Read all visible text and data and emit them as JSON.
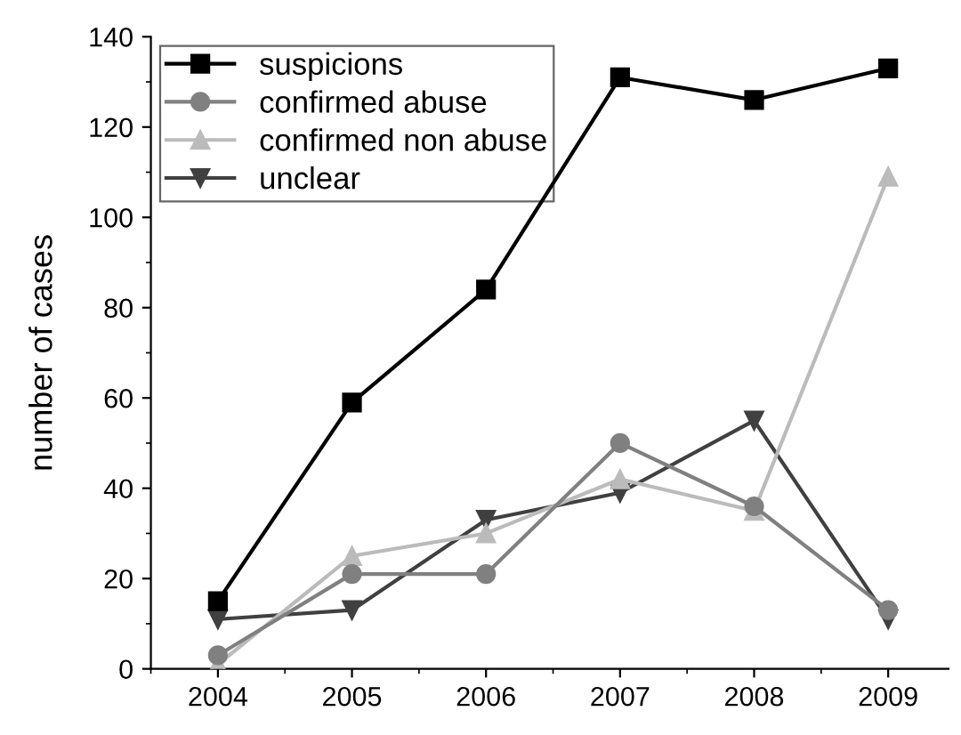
{
  "chart_data": {
    "type": "line",
    "ylabel": "number of cases",
    "x": [
      2004,
      2005,
      2006,
      2007,
      2008,
      2009
    ],
    "series": [
      {
        "name": "suspicions",
        "color": "#000000",
        "marker": "square",
        "values": [
          15,
          59,
          84,
          131,
          126,
          133
        ]
      },
      {
        "name": "confirmed abuse",
        "color": "#808080",
        "marker": "circle",
        "values": [
          3,
          21,
          21,
          50,
          36,
          13
        ]
      },
      {
        "name": "confirmed non abuse",
        "color": "#bbbbbb",
        "marker": "triangle",
        "values": [
          1,
          25,
          30,
          42,
          35,
          109
        ]
      },
      {
        "name": "unclear",
        "color": "#404040",
        "marker": "triangle_down",
        "values": [
          11,
          13,
          33,
          39,
          55,
          11
        ]
      }
    ],
    "xlim": [
      2003.5,
      2009.45
    ],
    "xticks": [
      2004,
      2005,
      2006,
      2007,
      2008,
      2009
    ],
    "ylim": [
      0,
      140
    ],
    "yticks": [
      0,
      20,
      40,
      60,
      80,
      100,
      120,
      140
    ],
    "grid": false,
    "legend": "top left",
    "line_style": "solid"
  }
}
